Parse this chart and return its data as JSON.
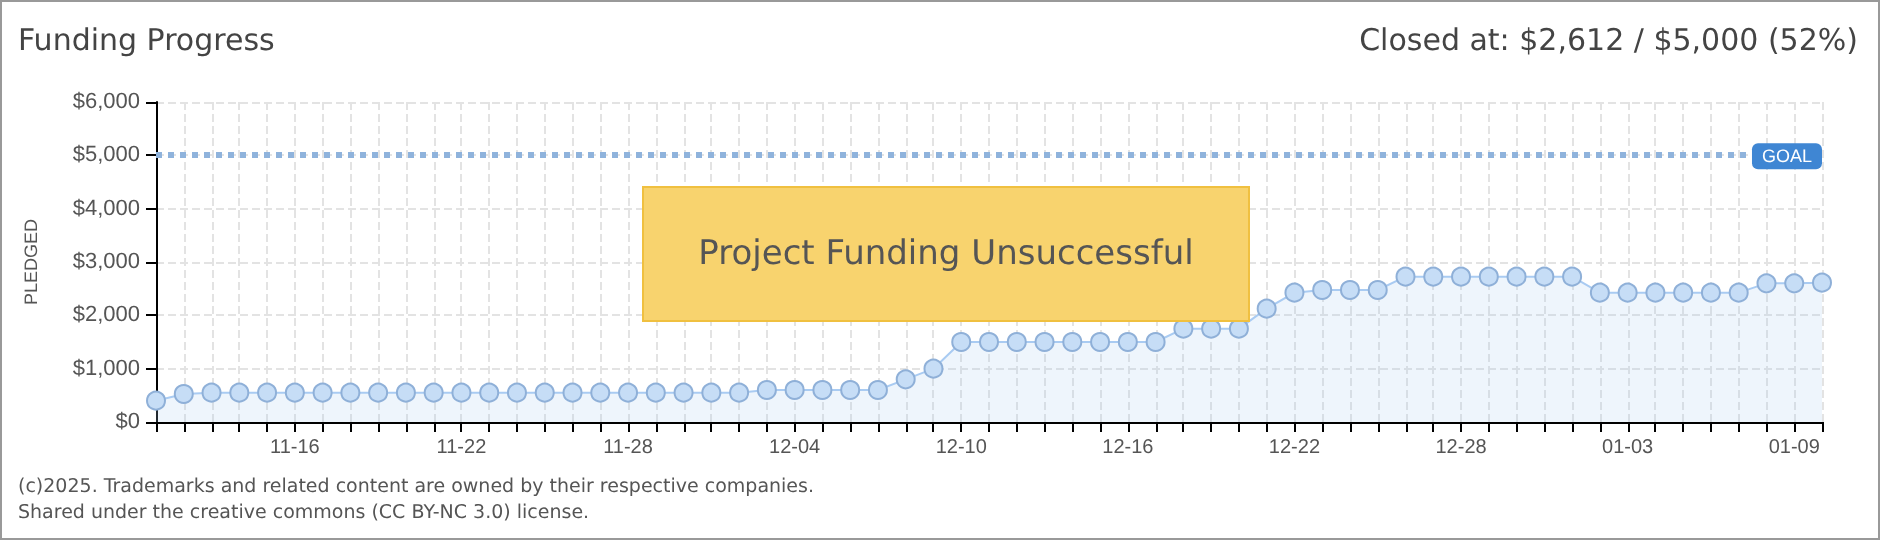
{
  "chart_data": {
    "type": "area",
    "title": "Funding Progress",
    "subtitle": "Closed at: $2,612 / $5,000 (52%)",
    "ylabel": "PLEDGED",
    "annotations": [
      "Project Funding Unsuccessful",
      "(c)2025. Trademarks and related content are owned by their respective companies.",
      "Shared under the creative commons (CC BY-NC 3.0) license."
    ],
    "categories": [
      null,
      null,
      null,
      null,
      null,
      "11-16",
      null,
      null,
      null,
      null,
      null,
      "11-22",
      null,
      null,
      null,
      null,
      null,
      "11-28",
      null,
      null,
      null,
      null,
      null,
      "12-04",
      null,
      null,
      null,
      null,
      null,
      "12-10",
      null,
      null,
      null,
      null,
      null,
      "12-16",
      null,
      null,
      null,
      null,
      null,
      "12-22",
      null,
      null,
      null,
      null,
      null,
      "12-28",
      null,
      null,
      null,
      null,
      null,
      "01-03",
      null,
      null,
      null,
      null,
      null,
      "01-09",
      null
    ],
    "series": [
      {
        "color": "#a9cbf2",
        "values": [
          400,
          525,
          550,
          550,
          550,
          550,
          550,
          550,
          550,
          550,
          550,
          550,
          550,
          550,
          550,
          550,
          550,
          550,
          550,
          550,
          550,
          550,
          600,
          600,
          600,
          600,
          600,
          800,
          1000,
          1500,
          1500,
          1500,
          1500,
          1500,
          1500,
          1500,
          1500,
          1750,
          1750,
          1750,
          2125,
          2425,
          2475,
          2475,
          2475,
          2725,
          2725,
          2725,
          2725,
          2725,
          2725,
          2725,
          2425,
          2425,
          2425,
          2425,
          2425,
          2425,
          2600,
          2600,
          2612
        ]
      }
    ],
    "ylim": [
      0,
      6000
    ],
    "yticks": [
      {
        "value": 0,
        "label": "$0"
      },
      {
        "value": 1000,
        "label": "$1,000"
      },
      {
        "value": 2000,
        "label": "$2,000"
      },
      {
        "value": 3000,
        "label": "$3,000"
      },
      {
        "value": 4000,
        "label": "$4,000"
      },
      {
        "value": 5000,
        "label": "$5,000"
      },
      {
        "value": 6000,
        "label": "$6,000"
      }
    ],
    "ref_lines": [
      {
        "axis": "y",
        "value": 5000,
        "label": "GOAL",
        "color": "#8fb3dc",
        "line_style": "dotted"
      }
    ],
    "grid": true,
    "marker": "circle",
    "line_style": "solid"
  }
}
